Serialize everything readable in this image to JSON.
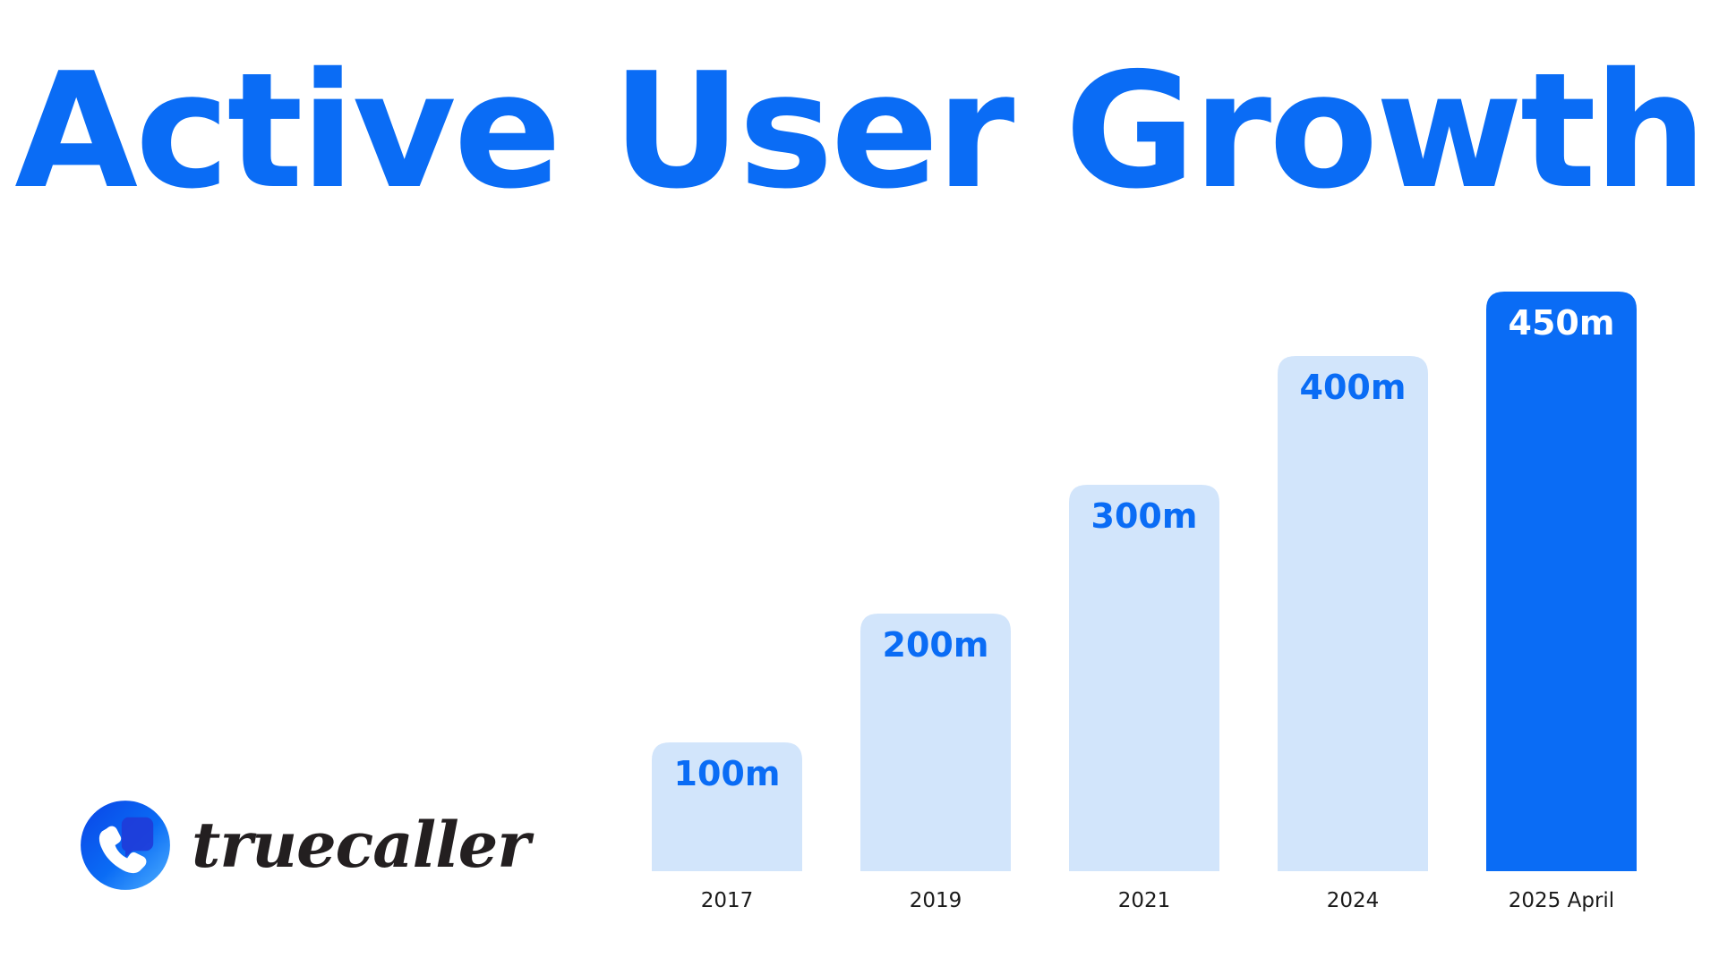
{
  "title": "Active User Growth",
  "colors": {
    "accent": "#0a6cf5",
    "bar_light": "#d2e5fb",
    "logo_text": "#231f20"
  },
  "logo": {
    "icon": "phone-chat-icon",
    "text": "truecaller"
  },
  "chart_data": {
    "type": "bar",
    "title": "Active User Growth",
    "categories": [
      "2017",
      "2019",
      "2021",
      "2024",
      "2025 April"
    ],
    "values": [
      100,
      200,
      300,
      400,
      450
    ],
    "data_labels": [
      "100m",
      "200m",
      "300m",
      "400m",
      "450m"
    ],
    "highlight_index": 4,
    "xlabel": "",
    "ylabel": "",
    "ylim": [
      0,
      450
    ],
    "grid": false,
    "legend": "none"
  }
}
